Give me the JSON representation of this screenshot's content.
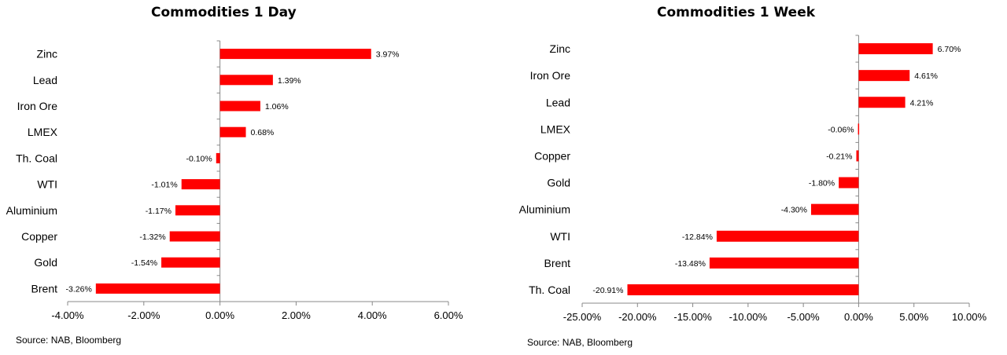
{
  "chart_data": [
    {
      "type": "bar",
      "orientation": "horizontal",
      "title": "Commodities 1 Day",
      "categories": [
        "Zinc",
        "Lead",
        "Iron Ore",
        "LMEX",
        "Th. Coal",
        "WTI",
        "Aluminium",
        "Copper",
        "Gold",
        "Brent"
      ],
      "values": [
        3.97,
        1.39,
        1.06,
        0.68,
        -0.1,
        -1.01,
        -1.17,
        -1.32,
        -1.54,
        -3.26
      ],
      "data_labels": [
        "3.97%",
        "1.39%",
        "1.06%",
        "0.68%",
        "-0.10%",
        "-1.01%",
        "-1.17%",
        "-1.32%",
        "-1.54%",
        "-3.26%"
      ],
      "xlim": [
        -4,
        6
      ],
      "ticks": [
        -4,
        -2,
        0,
        2,
        4,
        6
      ],
      "tick_labels": [
        "-4.00%",
        "-2.00%",
        "0.00%",
        "2.00%",
        "4.00%",
        "6.00%"
      ],
      "bar_color": "#ff0000",
      "grid": false,
      "source": "Source: NAB, Bloomberg"
    },
    {
      "type": "bar",
      "orientation": "horizontal",
      "title": "Commodities 1 Week",
      "categories": [
        "Zinc",
        "Iron Ore",
        "Lead",
        "LMEX",
        "Copper",
        "Gold",
        "Aluminium",
        "WTI",
        "Brent",
        "Th. Coal"
      ],
      "values": [
        6.7,
        4.61,
        4.21,
        -0.06,
        -0.21,
        -1.8,
        -4.3,
        -12.84,
        -13.48,
        -20.91
      ],
      "data_labels": [
        "6.70%",
        "4.61%",
        "4.21%",
        "-0.06%",
        "-0.21%",
        "-1.80%",
        "-4.30%",
        "-12.84%",
        "-13.48%",
        "-20.91%"
      ],
      "xlim": [
        -25,
        10
      ],
      "ticks": [
        -25,
        -20,
        -15,
        -10,
        -5,
        0,
        5,
        10
      ],
      "tick_labels": [
        "-25.00%",
        "-20.00%",
        "-15.00%",
        "-10.00%",
        "-5.00%",
        "0.00%",
        "5.00%",
        "10.00%"
      ],
      "bar_color": "#ff0000",
      "grid": false,
      "source": "Source: NAB, Bloomberg"
    }
  ]
}
